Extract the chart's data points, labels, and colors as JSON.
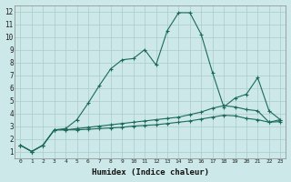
{
  "xlabel": "Humidex (Indice chaleur)",
  "ylabel": "",
  "bg_color": "#cce8e8",
  "grid_color": "#aacccc",
  "line_color": "#1a6b5a",
  "xlim": [
    -0.5,
    23.5
  ],
  "ylim": [
    0.5,
    12.5
  ],
  "xticks": [
    0,
    1,
    2,
    3,
    4,
    5,
    6,
    7,
    8,
    9,
    10,
    11,
    12,
    13,
    14,
    15,
    16,
    17,
    18,
    19,
    20,
    21,
    22,
    23
  ],
  "yticks": [
    1,
    2,
    3,
    4,
    5,
    6,
    7,
    8,
    9,
    10,
    11,
    12
  ],
  "series1_x": [
    0,
    1,
    2,
    3,
    4,
    5,
    6,
    7,
    8,
    9,
    10,
    11,
    12,
    13,
    14,
    15,
    16,
    17,
    18,
    19,
    20,
    21,
    22,
    23
  ],
  "series1_y": [
    1.5,
    1.0,
    1.5,
    2.7,
    2.8,
    3.5,
    4.8,
    6.2,
    7.5,
    8.2,
    8.3,
    9.0,
    7.8,
    10.5,
    11.9,
    11.9,
    10.2,
    7.2,
    4.5,
    5.2,
    5.5,
    6.8,
    4.2,
    3.5
  ],
  "series2_x": [
    0,
    1,
    2,
    3,
    4,
    5,
    6,
    7,
    8,
    9,
    10,
    11,
    12,
    13,
    14,
    15,
    16,
    17,
    18,
    19,
    20,
    21,
    22,
    23
  ],
  "series2_y": [
    1.5,
    1.0,
    1.5,
    2.7,
    2.7,
    2.8,
    2.9,
    3.0,
    3.1,
    3.2,
    3.3,
    3.4,
    3.5,
    3.6,
    3.7,
    3.9,
    4.1,
    4.4,
    4.6,
    4.5,
    4.3,
    4.2,
    3.3,
    3.5
  ],
  "series3_x": [
    0,
    1,
    2,
    3,
    4,
    5,
    6,
    7,
    8,
    9,
    10,
    11,
    12,
    13,
    14,
    15,
    16,
    17,
    18,
    19,
    20,
    21,
    22,
    23
  ],
  "series3_y": [
    1.5,
    1.0,
    1.5,
    2.7,
    2.7,
    2.7,
    2.75,
    2.8,
    2.85,
    2.9,
    3.0,
    3.05,
    3.1,
    3.2,
    3.3,
    3.4,
    3.55,
    3.7,
    3.85,
    3.8,
    3.6,
    3.5,
    3.3,
    3.35
  ]
}
